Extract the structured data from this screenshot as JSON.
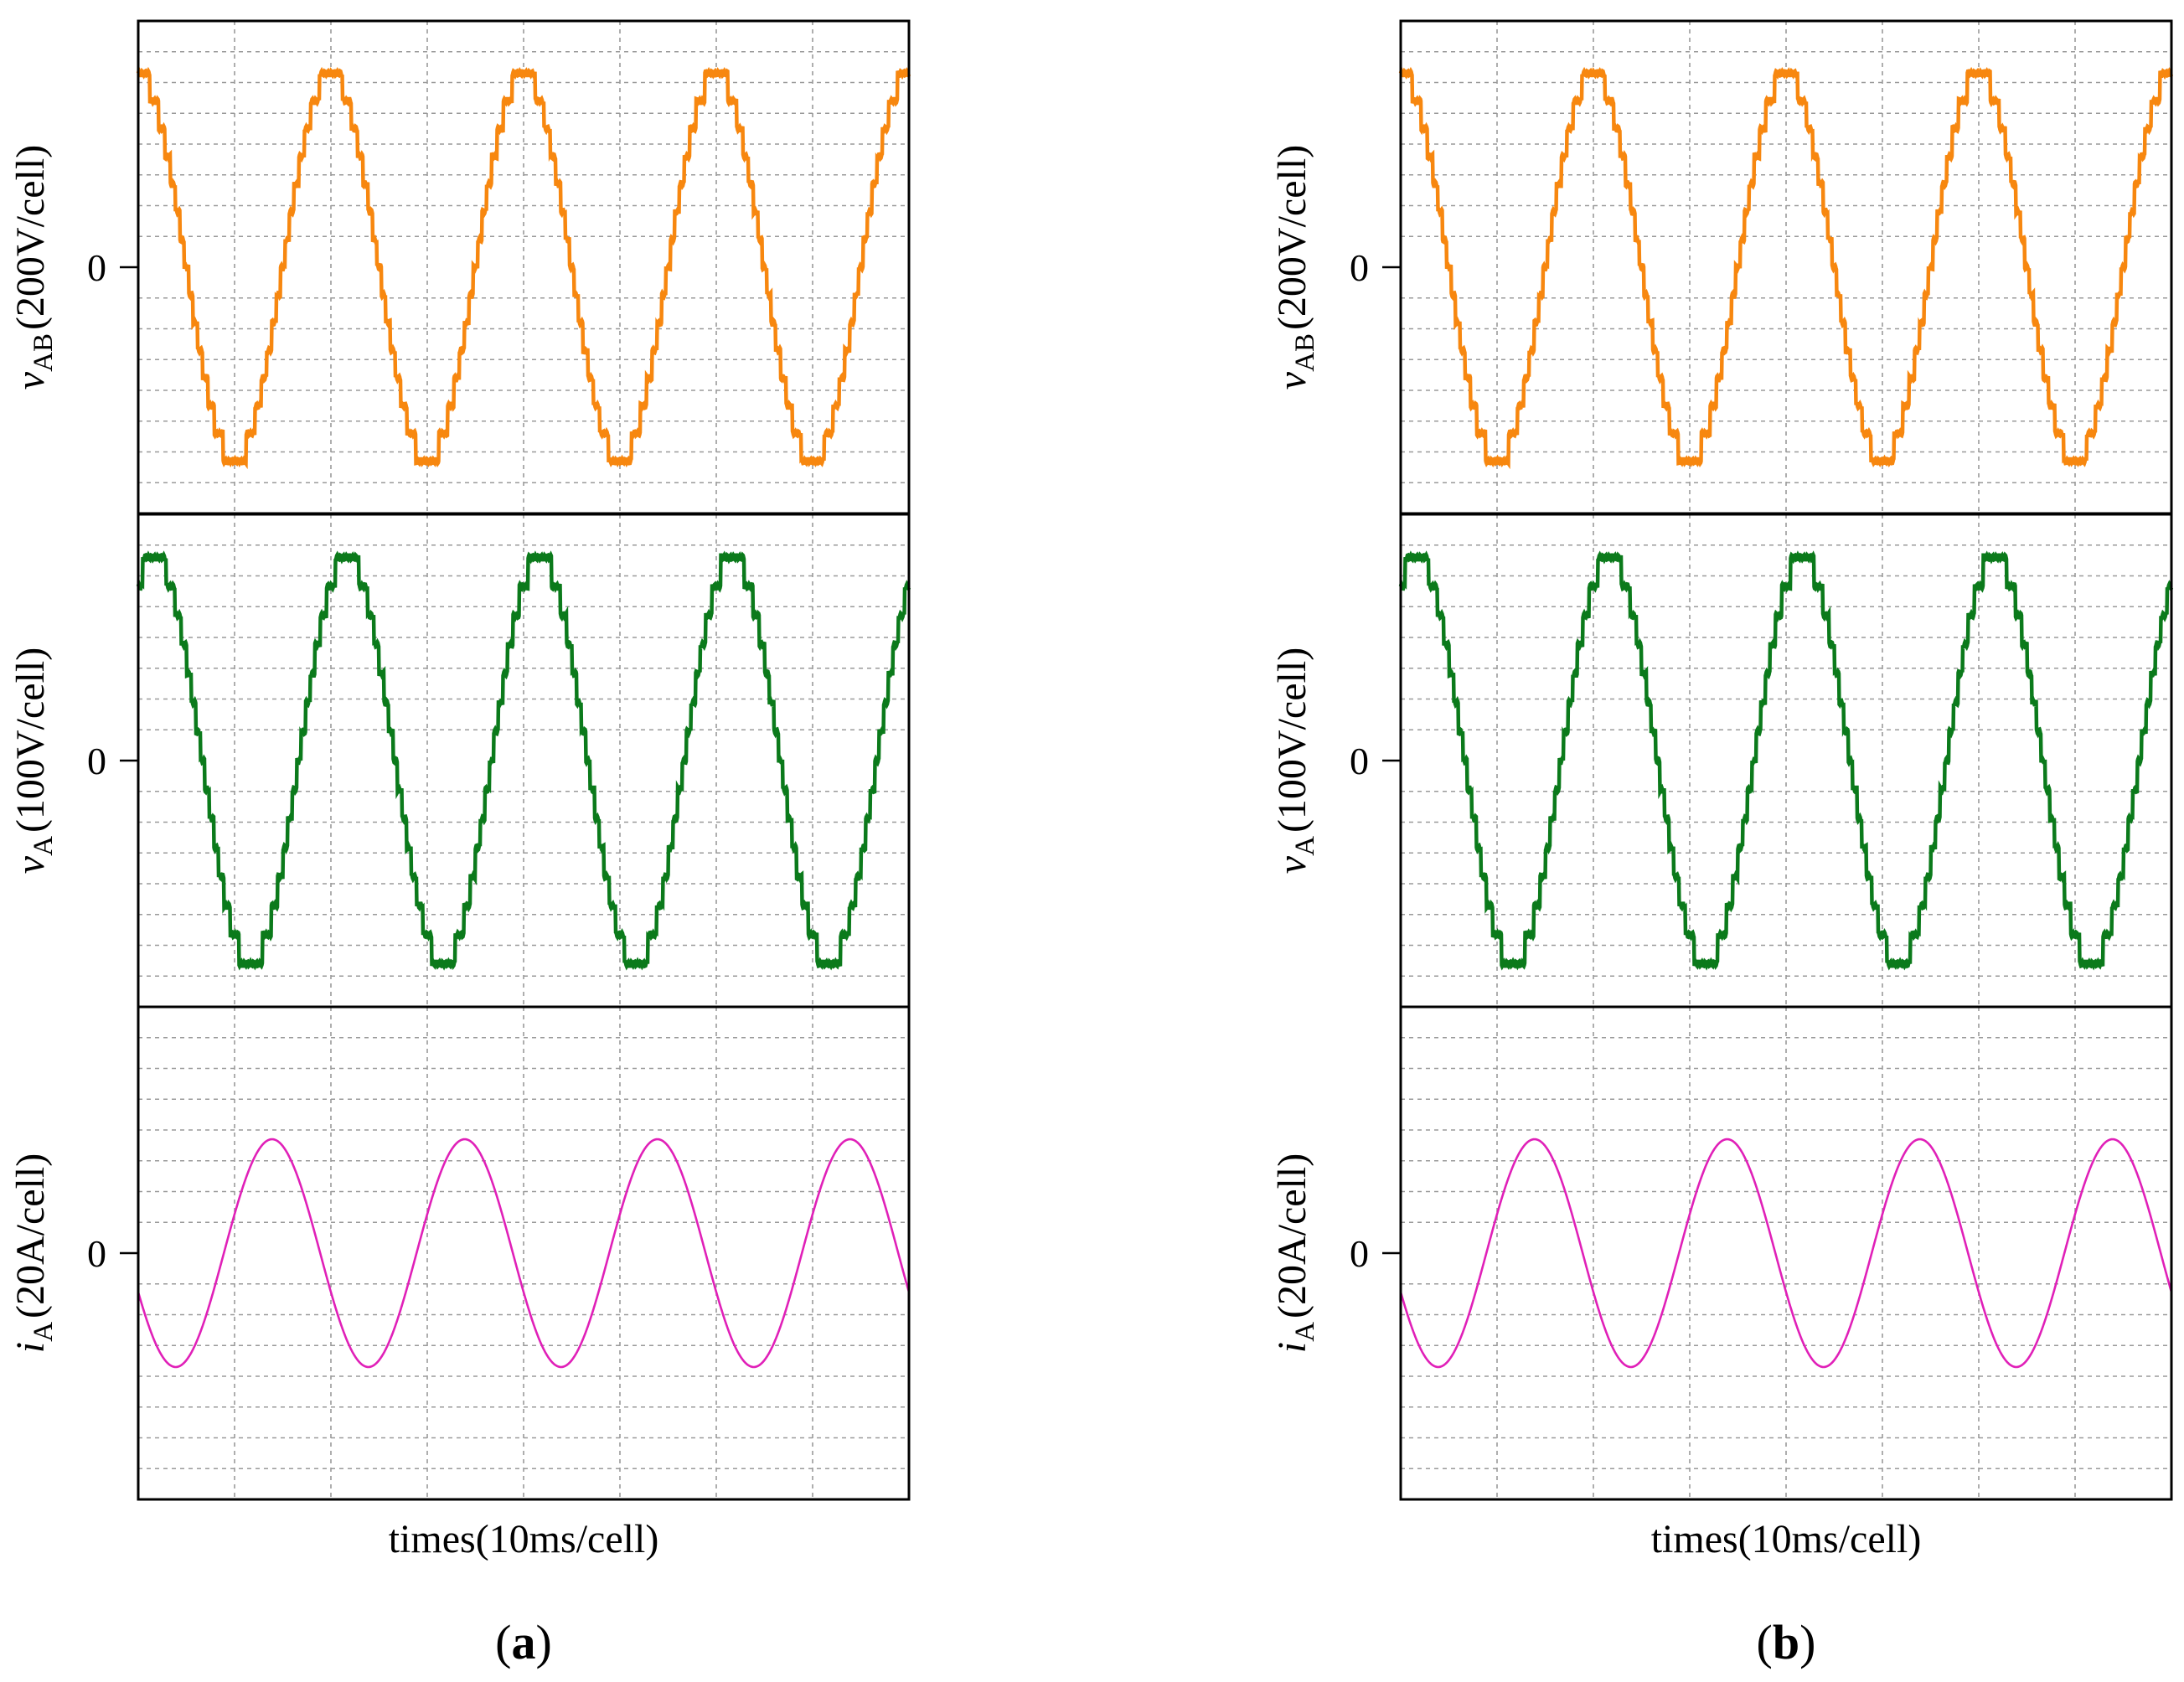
{
  "figure": {
    "panels": [
      {
        "id": "a",
        "letter": "a",
        "xlabel": "times(10ms/cell)"
      },
      {
        "id": "b",
        "letter": "b",
        "xlabel": "times(10ms/cell)"
      }
    ]
  },
  "chart_data": [
    {
      "type": "line",
      "panel": "a",
      "title": "",
      "xlabel": "times(10ms/cell)",
      "x_unit": "ms",
      "x_range": [
        0,
        80
      ],
      "x_divisions": 8,
      "grid": true,
      "subplots": [
        {
          "id": "vAB",
          "ylabel": {
            "var": "v",
            "sub": "AB",
            "unit": "(200V/cell)"
          },
          "zero_label": "0",
          "ylim": [
            -4,
            4
          ],
          "y_divisions": 8,
          "waveform": "staircase",
          "color": "#f7870f",
          "amplitude_cells": 3.15,
          "period_ms": 20,
          "phase_deg": 90,
          "steps_per_half_cycle": 14
        },
        {
          "id": "vA",
          "ylabel": {
            "var": "v",
            "sub": "A",
            "unit": "(100V/cell)"
          },
          "zero_label": "0",
          "ylim": [
            -4,
            4
          ],
          "y_divisions": 8,
          "waveform": "staircase",
          "color": "#0b7a1b",
          "amplitude_cells": 3.3,
          "period_ms": 20,
          "phase_deg": 60,
          "steps_per_half_cycle": 14
        },
        {
          "id": "iA",
          "ylabel": {
            "var": "i",
            "sub": "A",
            "unit": "(20A/cell)"
          },
          "zero_label": "0",
          "ylim": [
            -4,
            4
          ],
          "y_divisions": 8,
          "waveform": "sine",
          "color": "#e020b8",
          "amplitude_cells": 1.85,
          "period_ms": 20,
          "phase_deg": 200
        }
      ]
    },
    {
      "type": "line",
      "panel": "b",
      "title": "",
      "xlabel": "times(10ms/cell)",
      "x_unit": "ms",
      "x_range": [
        0,
        80
      ],
      "x_divisions": 8,
      "grid": true,
      "subplots": [
        {
          "id": "vAB",
          "ylabel": {
            "var": "v",
            "sub": "AB",
            "unit": "(200V/cell)"
          },
          "zero_label": "0",
          "ylim": [
            -4,
            4
          ],
          "y_divisions": 8,
          "waveform": "staircase",
          "color": "#f7870f",
          "amplitude_cells": 3.15,
          "period_ms": 20,
          "phase_deg": 90,
          "steps_per_half_cycle": 14
        },
        {
          "id": "vA",
          "ylabel": {
            "var": "v",
            "sub": "A",
            "unit": "(100V/cell)"
          },
          "zero_label": "0",
          "ylim": [
            -4,
            4
          ],
          "y_divisions": 8,
          "waveform": "staircase",
          "color": "#0b7a1b",
          "amplitude_cells": 3.3,
          "period_ms": 20,
          "phase_deg": 60,
          "steps_per_half_cycle": 14
        },
        {
          "id": "iA",
          "ylabel": {
            "var": "i",
            "sub": "A",
            "unit": "(20A/cell)"
          },
          "zero_label": "0",
          "ylim": [
            -4,
            4
          ],
          "y_divisions": 8,
          "waveform": "sine",
          "color": "#e020b8",
          "amplitude_cells": 1.85,
          "period_ms": 20,
          "phase_deg": 200
        }
      ]
    }
  ]
}
